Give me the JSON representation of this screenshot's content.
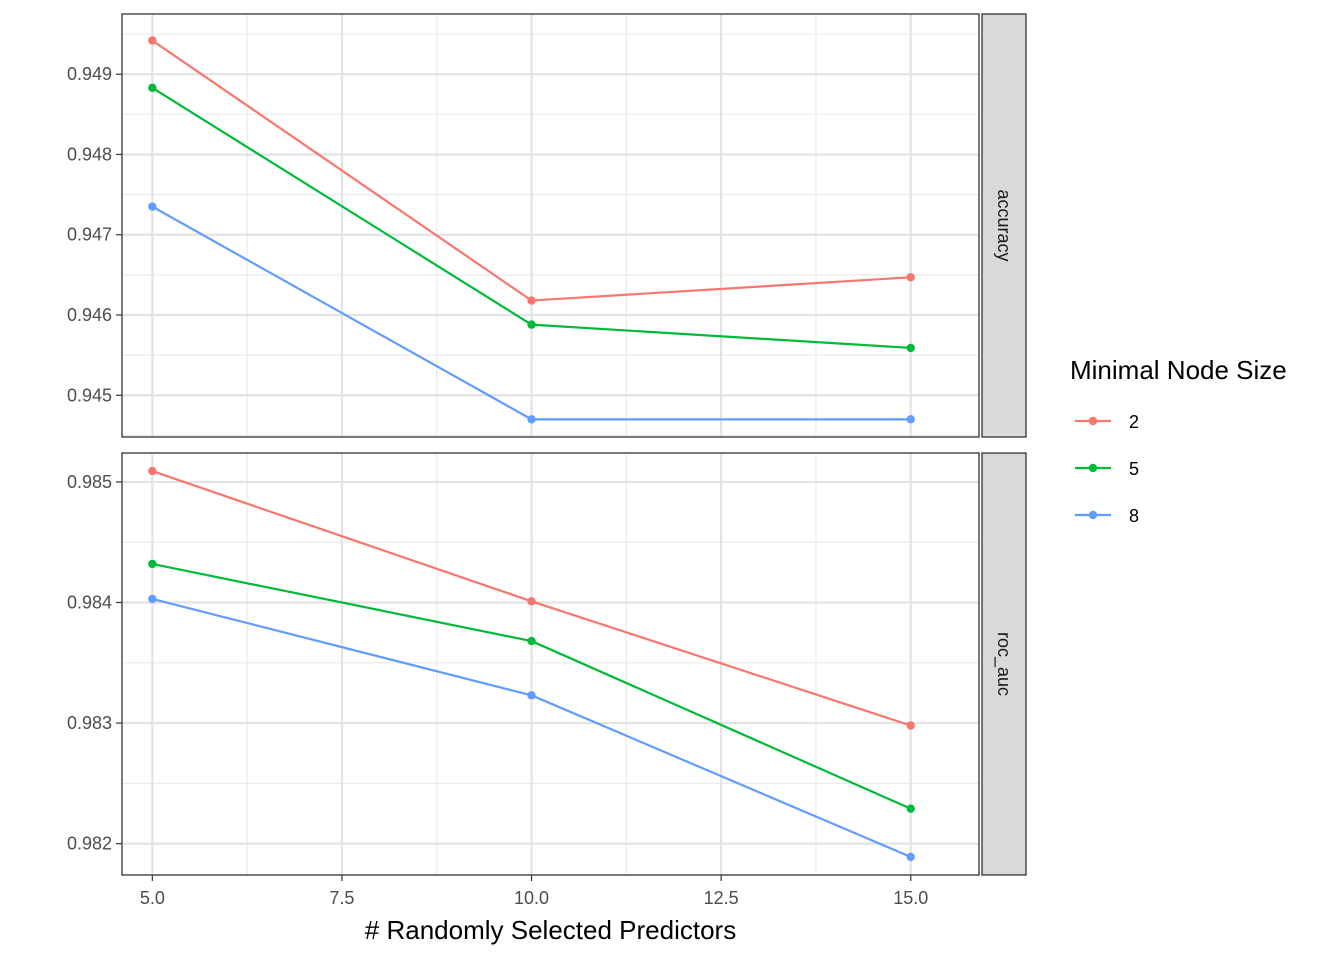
{
  "chart_data": {
    "type": "line",
    "xlabel": "# Randomly Selected Predictors",
    "x_ticks": [
      "5.0",
      "7.5",
      "10.0",
      "12.5",
      "15.0"
    ],
    "x_tick_values": [
      5,
      7.5,
      10,
      12.5,
      15
    ],
    "xlim": [
      4.6,
      15.9
    ],
    "legend": {
      "title": "Minimal Node Size",
      "placement": "right",
      "entries": [
        "2",
        "5",
        "8"
      ],
      "colors": [
        "#F8766D",
        "#00BA38",
        "#619CFF"
      ]
    },
    "panels": [
      {
        "strip_label": "accuracy",
        "ylim": [
          0.94448,
          0.94975
        ],
        "y_ticks": [
          "0.945",
          "0.946",
          "0.947",
          "0.948",
          "0.949"
        ],
        "y_tick_values": [
          0.945,
          0.946,
          0.947,
          0.948,
          0.949
        ],
        "x": [
          5,
          10,
          15
        ],
        "series": [
          {
            "name": "2",
            "color": "#F8766D",
            "values": [
              0.94942,
              0.94618,
              0.94647
            ]
          },
          {
            "name": "5",
            "color": "#00BA38",
            "values": [
              0.94883,
              0.94588,
              0.94559
            ]
          },
          {
            "name": "8",
            "color": "#619CFF",
            "values": [
              0.94735,
              0.9447,
              0.9447
            ]
          }
        ]
      },
      {
        "strip_label": "roc_auc",
        "ylim": [
          0.98174,
          0.98524
        ],
        "y_ticks": [
          "0.982",
          "0.983",
          "0.984",
          "0.985"
        ],
        "y_tick_values": [
          0.982,
          0.983,
          0.984,
          0.985
        ],
        "x": [
          5,
          10,
          15
        ],
        "series": [
          {
            "name": "2",
            "color": "#F8766D",
            "values": [
              0.98509,
              0.98401,
              0.98298
            ]
          },
          {
            "name": "5",
            "color": "#00BA38",
            "values": [
              0.98432,
              0.98368,
              0.98229
            ]
          },
          {
            "name": "8",
            "color": "#619CFF",
            "values": [
              0.98403,
              0.98323,
              0.98189
            ]
          }
        ]
      }
    ],
    "grid": true
  }
}
